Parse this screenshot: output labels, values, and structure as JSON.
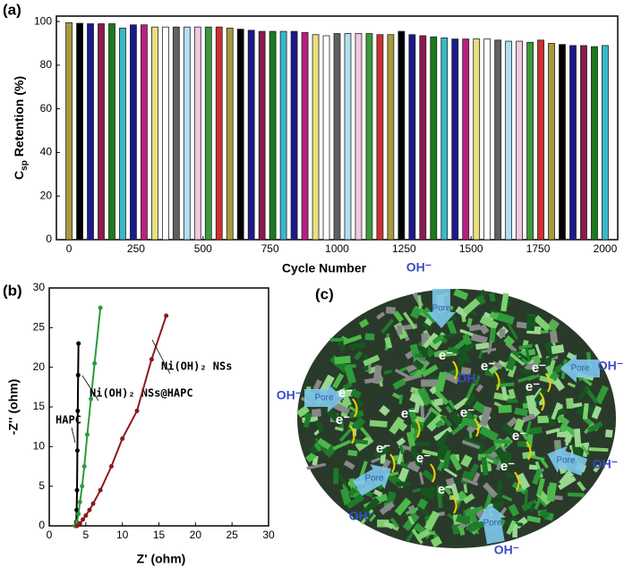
{
  "chart_data": [
    {
      "type": "bar",
      "panel": "(a)",
      "xlabel": "Cycle Number",
      "ylabel_parts": [
        "C",
        "sp",
        "Retention (%)"
      ],
      "x": [
        0,
        40,
        80,
        120,
        160,
        200,
        240,
        280,
        320,
        360,
        400,
        440,
        480,
        520,
        560,
        600,
        640,
        680,
        720,
        760,
        800,
        840,
        880,
        920,
        960,
        1000,
        1040,
        1080,
        1120,
        1160,
        1200,
        1240,
        1280,
        1320,
        1360,
        1400,
        1440,
        1480,
        1520,
        1560,
        1600,
        1640,
        1680,
        1720,
        1760,
        1800,
        1840,
        1880,
        1920,
        1960,
        2000
      ],
      "values": [
        99.5,
        99.2,
        99,
        99,
        99,
        97,
        98.5,
        98.5,
        97.5,
        97.5,
        97.5,
        97.5,
        97.5,
        97.5,
        97.5,
        97,
        96.5,
        96,
        95.5,
        95.5,
        95.5,
        95.5,
        95,
        94,
        93.5,
        94.5,
        94.5,
        94.5,
        94.5,
        94,
        94,
        95.5,
        94,
        93.5,
        93,
        92.5,
        92,
        92,
        92,
        92,
        91.5,
        91,
        91,
        90.5,
        91.5,
        90,
        89.5,
        89,
        89,
        88.5,
        89
      ],
      "colors": [
        "#a89a3c",
        "#000000",
        "#1a1a8c",
        "#8c1a4a",
        "#1a7a1a",
        "#38b8c8",
        "#1a1a8c",
        "#b82080",
        "#e8e080",
        "#ffffff",
        "#606060",
        "#b0e0f0",
        "#f0c8e0",
        "#3a9a3a",
        "#d03030"
      ],
      "xlim": [
        -47,
        2047
      ],
      "ylim": [
        0,
        102.5
      ],
      "xticks": [
        0,
        250,
        500,
        750,
        1000,
        1250,
        1500,
        1750,
        2000
      ],
      "yticks": [
        0,
        20,
        40,
        60,
        80,
        100
      ]
    },
    {
      "type": "line",
      "panel": "(b)",
      "xlabel": "Z' (ohm)",
      "ylabel": "-Z'' (ohm)",
      "xlim": [
        0,
        30
      ],
      "ylim": [
        0,
        30
      ],
      "xticks": [
        0,
        5,
        10,
        15,
        20,
        25,
        30
      ],
      "yticks": [
        0,
        5,
        10,
        15,
        20,
        25,
        30
      ],
      "series": [
        {
          "name": "HAPC",
          "color": "#000000",
          "x": [
            3.6,
            3.7,
            3.75,
            3.8,
            3.85,
            3.9,
            3.95,
            4.0
          ],
          "values": [
            0,
            0.5,
            2,
            4.5,
            9.5,
            14.5,
            19,
            23
          ]
        },
        {
          "name": "Ni(OH)₂ NSs@HAPC",
          "color": "#2e9a3a",
          "x": [
            3.5,
            3.8,
            4.0,
            4.2,
            4.5,
            4.8,
            5.2,
            5.7,
            6.2,
            7.0
          ],
          "values": [
            0,
            0.5,
            1.5,
            3,
            5,
            7.5,
            11.5,
            16,
            20.5,
            27.5
          ]
        },
        {
          "name": "Ni(OH)₂ NSs",
          "color": "#8b1a1a",
          "x": [
            3.8,
            4.2,
            4.6,
            5.0,
            5.5,
            6.0,
            7.0,
            8.5,
            10,
            12,
            14,
            16
          ],
          "values": [
            0,
            0.3,
            0.8,
            1.3,
            2,
            2.8,
            4.5,
            7.5,
            11,
            14.5,
            21,
            26.5
          ]
        }
      ]
    }
  ],
  "illustration": {
    "panel": "(c)",
    "hydroxide": "OH⁻",
    "pore": "Pore",
    "electron": "e⁻",
    "center_label": "OH"
  }
}
